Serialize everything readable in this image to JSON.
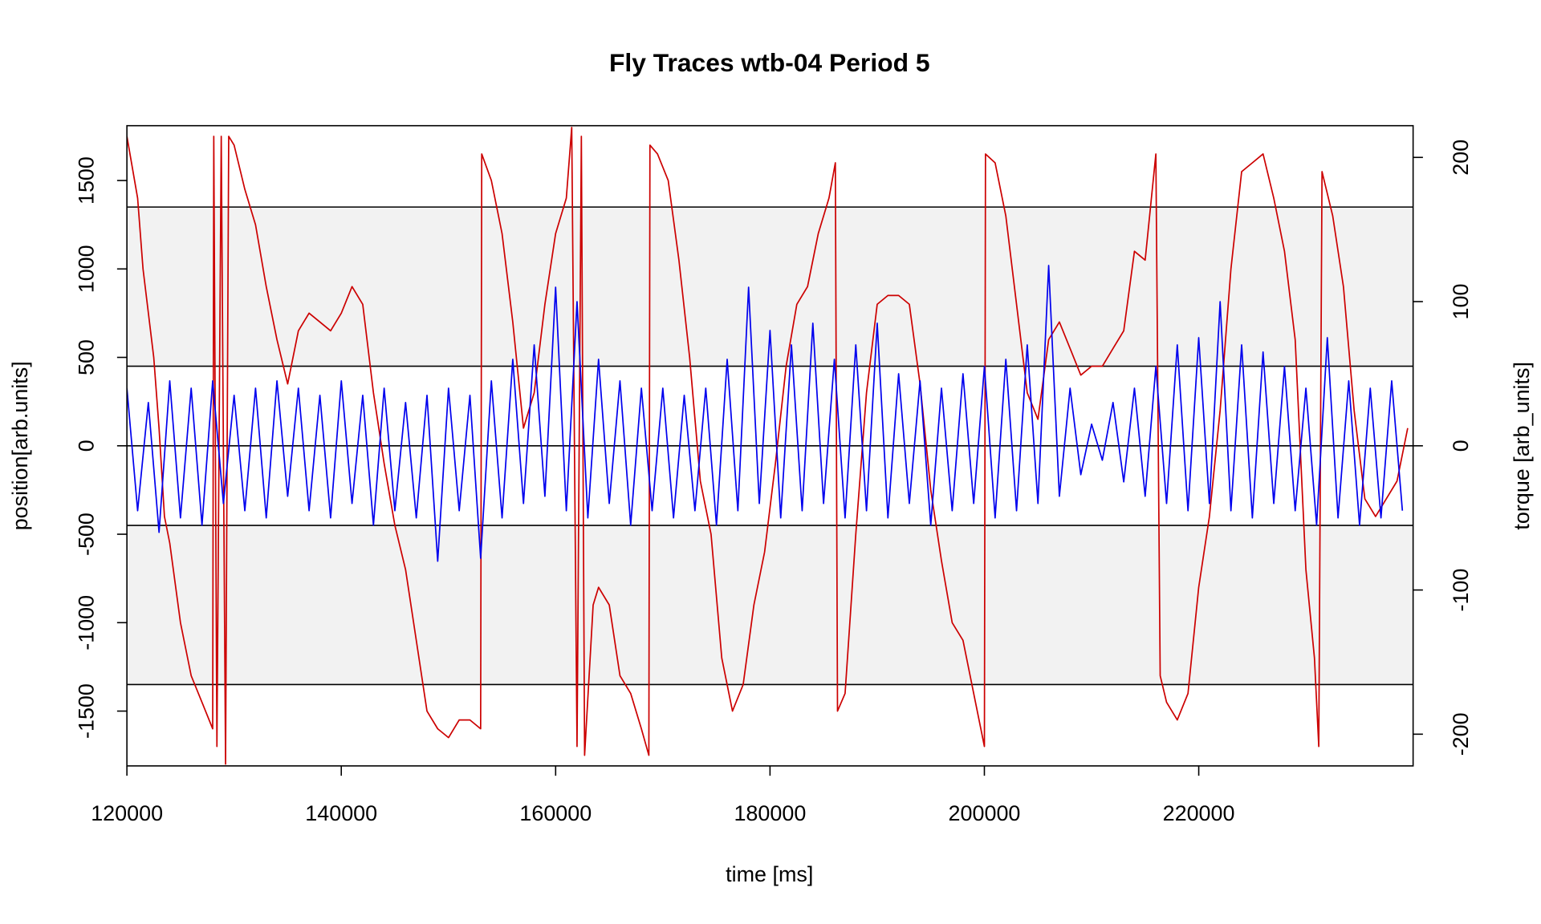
{
  "chart_data": {
    "type": "line",
    "title": "Fly Traces wtb-04 Period 5",
    "x_label": "time [ms]",
    "y_label": "position[arb.units]",
    "y2_label": "torque [arb_units]",
    "xlim": [
      120000,
      240000
    ],
    "xticks": [
      120000,
      140000,
      160000,
      180000,
      200000,
      220000
    ],
    "ylim": [
      -1810,
      1810
    ],
    "yticks": [
      -1500,
      -1000,
      -500,
      0,
      500,
      1000,
      1500
    ],
    "y2lim": [
      -222,
      222
    ],
    "y2ticks": [
      -200,
      -100,
      0,
      100,
      200
    ],
    "hlines": [
      1350,
      450,
      0,
      -450,
      -1350
    ],
    "shaded_bands": [
      [
        450,
        1350
      ],
      [
        -1350,
        -450
      ]
    ],
    "band_color": "#f2f2f2",
    "series": [
      {
        "name": "position",
        "color": "#cc0000",
        "x": [
          120000,
          121000,
          121500,
          122500,
          123000,
          123500,
          124000,
          125000,
          126000,
          127000,
          128000,
          128100,
          128400,
          128800,
          129200,
          129500,
          130000,
          131000,
          132000,
          133000,
          134000,
          135000,
          136000,
          137000,
          138000,
          139000,
          140000,
          141000,
          142000,
          143000,
          144000,
          145000,
          146000,
          147000,
          148000,
          149000,
          150000,
          151000,
          152000,
          153000,
          153100,
          154000,
          155000,
          156000,
          157000,
          158000,
          159000,
          160000,
          161000,
          161500,
          162000,
          162400,
          162700,
          163500,
          164000,
          165000,
          166000,
          167000,
          168000,
          168700,
          168800,
          169500,
          170500,
          171500,
          172500,
          173500,
          174500,
          175500,
          176500,
          177500,
          178500,
          179500,
          180500,
          181500,
          182500,
          183500,
          184500,
          185500,
          186100,
          186300,
          187000,
          188000,
          189000,
          190000,
          191000,
          192000,
          193000,
          194000,
          195000,
          196000,
          197000,
          198000,
          199000,
          200000,
          200100,
          201000,
          202000,
          203000,
          204000,
          205000,
          206000,
          207000,
          208000,
          209000,
          210000,
          211000,
          212000,
          213000,
          214000,
          215000,
          216000,
          216400,
          217000,
          218000,
          219000,
          220000,
          221000,
          222000,
          223000,
          224000,
          225000,
          226000,
          227000,
          228000,
          229000,
          230000,
          230800,
          231200,
          231500,
          232500,
          233500,
          234500,
          235500,
          236500,
          237500,
          238500,
          239500
        ],
        "values": [
          1750,
          1400,
          1000,
          500,
          100,
          -400,
          -550,
          -1000,
          -1300,
          -1450,
          -1600,
          1750,
          -1700,
          1750,
          -1800,
          1750,
          1700,
          1450,
          1250,
          900,
          600,
          350,
          650,
          750,
          700,
          650,
          750,
          900,
          800,
          300,
          -100,
          -450,
          -700,
          -1100,
          -1500,
          -1600,
          -1650,
          -1550,
          -1550,
          -1600,
          1650,
          1500,
          1200,
          700,
          100,
          300,
          800,
          1200,
          1400,
          1800,
          -1700,
          1750,
          -1750,
          -900,
          -800,
          -900,
          -1300,
          -1400,
          -1600,
          -1750,
          1700,
          1650,
          1500,
          1050,
          500,
          -200,
          -500,
          -1200,
          -1500,
          -1350,
          -900,
          -600,
          -100,
          450,
          800,
          900,
          1200,
          1400,
          1600,
          -1500,
          -1400,
          -500,
          300,
          800,
          850,
          850,
          800,
          350,
          -250,
          -650,
          -1000,
          -1100,
          -1400,
          -1700,
          1650,
          1600,
          1300,
          800,
          300,
          150,
          600,
          700,
          550,
          400,
          450,
          450,
          550,
          650,
          1100,
          1050,
          1650,
          -1300,
          -1450,
          -1550,
          -1400,
          -800,
          -400,
          200,
          1000,
          1550,
          1600,
          1650,
          1400,
          1100,
          600,
          -700,
          -1200,
          -1700,
          1550,
          1300,
          900,
          200,
          -300,
          -400,
          -300,
          -200,
          100
        ]
      },
      {
        "name": "torque",
        "color": "#0000ee",
        "axis": "y2",
        "x": [
          120000,
          121000,
          122000,
          123000,
          124000,
          125000,
          126000,
          127000,
          128000,
          129000,
          130000,
          131000,
          132000,
          133000,
          134000,
          135000,
          136000,
          137000,
          138000,
          139000,
          140000,
          141000,
          142000,
          143000,
          144000,
          145000,
          146000,
          147000,
          148000,
          149000,
          150000,
          151000,
          152000,
          153000,
          154000,
          155000,
          156000,
          157000,
          158000,
          159000,
          160000,
          161000,
          162000,
          163000,
          164000,
          165000,
          166000,
          167000,
          168000,
          169000,
          170000,
          171000,
          172000,
          173000,
          174000,
          175000,
          176000,
          177000,
          178000,
          179000,
          180000,
          181000,
          182000,
          183000,
          184000,
          185000,
          186000,
          187000,
          188000,
          189000,
          190000,
          191000,
          192000,
          193000,
          194000,
          195000,
          196000,
          197000,
          198000,
          199000,
          200000,
          201000,
          202000,
          203000,
          204000,
          205000,
          206000,
          207000,
          208000,
          209000,
          210000,
          211000,
          212000,
          213000,
          214000,
          215000,
          216000,
          217000,
          218000,
          219000,
          220000,
          221000,
          222000,
          223000,
          224000,
          225000,
          226000,
          227000,
          228000,
          229000,
          230000,
          231000,
          232000,
          233000,
          234000,
          235000,
          236000,
          237000,
          238000,
          239000
        ],
        "values": [
          40,
          -45,
          30,
          -60,
          45,
          -50,
          40,
          -55,
          45,
          -40,
          35,
          -45,
          40,
          -50,
          45,
          -35,
          40,
          -45,
          35,
          -50,
          45,
          -40,
          35,
          -55,
          40,
          -45,
          30,
          -50,
          35,
          -80,
          40,
          -45,
          35,
          -78,
          45,
          -50,
          60,
          -40,
          70,
          -35,
          110,
          -45,
          100,
          -50,
          60,
          -40,
          45,
          -55,
          40,
          -45,
          40,
          -50,
          35,
          -45,
          40,
          -55,
          60,
          -45,
          110,
          -40,
          80,
          -50,
          70,
          -45,
          85,
          -40,
          60,
          -50,
          70,
          -45,
          85,
          -50,
          50,
          -40,
          45,
          -55,
          40,
          -45,
          50,
          -40,
          55,
          -50,
          60,
          -45,
          70,
          -40,
          125,
          -35,
          40,
          -20,
          15,
          -10,
          30,
          -25,
          40,
          -35,
          55,
          -40,
          70,
          -45,
          75,
          -40,
          100,
          -45,
          70,
          -50,
          65,
          -40,
          55,
          -45,
          40,
          -55,
          75,
          -50,
          45,
          -55,
          40,
          -50,
          45,
          -45
        ]
      }
    ]
  }
}
